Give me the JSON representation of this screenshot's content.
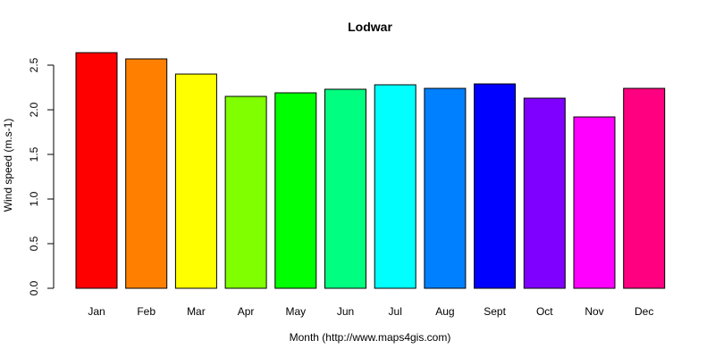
{
  "chart_data": {
    "type": "bar",
    "title": "Lodwar",
    "xlabel": "Month (http://www.maps4gis.com)",
    "ylabel": "Wind speed (m.s-1)",
    "categories": [
      "Jan",
      "Feb",
      "Mar",
      "Apr",
      "May",
      "Jun",
      "Jul",
      "Aug",
      "Sept",
      "Oct",
      "Nov",
      "Dec"
    ],
    "values": [
      2.64,
      2.57,
      2.4,
      2.15,
      2.19,
      2.23,
      2.28,
      2.24,
      2.29,
      2.13,
      1.92,
      2.24
    ],
    "colors": [
      "#FF0000",
      "#FF8000",
      "#FFFF00",
      "#80FF00",
      "#00FF00",
      "#00FF80",
      "#00FFFF",
      "#0080FF",
      "#0000FF",
      "#8000FF",
      "#FF00FF",
      "#FF0080"
    ],
    "yticks": [
      "0.0",
      "0.5",
      "1.0",
      "1.5",
      "2.0",
      "2.5"
    ],
    "ylim": [
      0,
      2.64
    ],
    "grid": false,
    "legend": "none"
  }
}
